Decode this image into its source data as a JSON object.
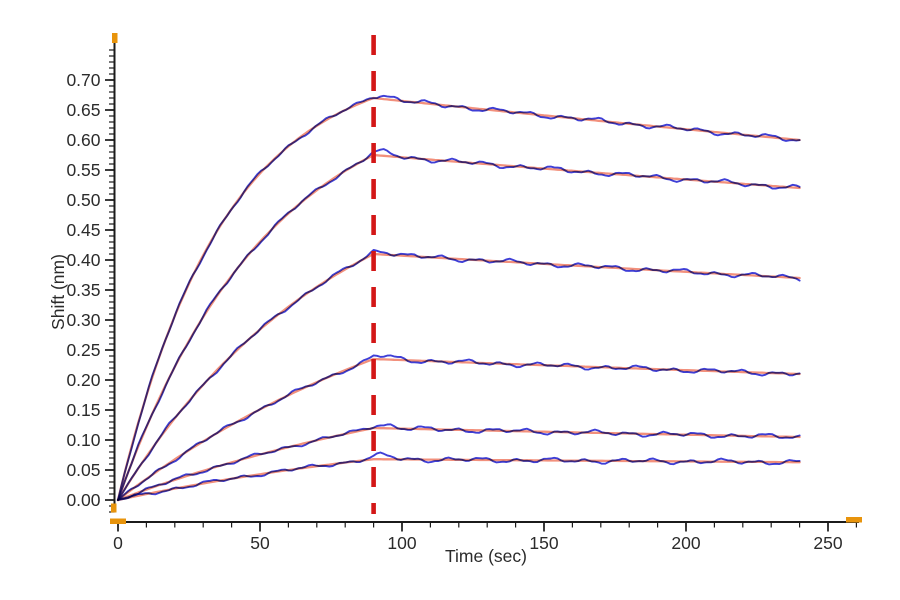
{
  "chart_data": {
    "type": "line",
    "title": "",
    "xlabel": "Time (sec)",
    "ylabel": "Shift (nm)",
    "xlim": [
      0,
      262
    ],
    "ylim": [
      -0.02,
      0.75
    ],
    "x_major_ticks": [
      0,
      50,
      100,
      150,
      200,
      250
    ],
    "x_minor_step": 10,
    "y_major_tick_min": 0.0,
    "y_major_tick_max": 0.7,
    "y_major_tick_step": 0.05,
    "y_minor_step": 0.01,
    "y_tick_decimals": 2,
    "grid": false,
    "legend": "none",
    "phase_boundary_sec": 90,
    "time_range_sec": [
      0,
      240
    ],
    "colors": {
      "raw_trace": "#3e3ed6",
      "fit_trace": "#f2907c",
      "phase_boundary_line": "#d31717",
      "axis": "#1b1b1b",
      "axis_end_cap": "#e8940c",
      "tick_text": "#2b2b2b"
    },
    "noise_amplitude_nm": 0.0042,
    "series": [
      {
        "model": {
          "peak_nm": 0.67,
          "end_nm": 0.6,
          "k_assoc": 0.027
        },
        "points": [
          [
            0,
            0
          ],
          [
            10,
            0.174
          ],
          [
            20,
            0.307
          ],
          [
            30,
            0.408
          ],
          [
            40,
            0.485
          ],
          [
            50,
            0.544
          ],
          [
            60,
            0.589
          ],
          [
            70,
            0.624
          ],
          [
            80,
            0.65
          ],
          [
            90,
            0.67
          ],
          [
            100,
            0.665
          ],
          [
            110,
            0.66
          ],
          [
            120,
            0.655
          ],
          [
            130,
            0.65
          ],
          [
            140,
            0.646
          ],
          [
            150,
            0.641
          ],
          [
            160,
            0.636
          ],
          [
            170,
            0.631
          ],
          [
            180,
            0.627
          ],
          [
            190,
            0.622
          ],
          [
            200,
            0.618
          ],
          [
            210,
            0.613
          ],
          [
            220,
            0.609
          ],
          [
            230,
            0.604
          ],
          [
            240,
            0.6
          ]
        ]
      },
      {
        "model": {
          "peak_nm": 0.575,
          "end_nm": 0.52,
          "k_assoc": 0.019
        },
        "points": [
          [
            0,
            0
          ],
          [
            10,
            0.121
          ],
          [
            20,
            0.222
          ],
          [
            30,
            0.305
          ],
          [
            40,
            0.374
          ],
          [
            50,
            0.431
          ],
          [
            60,
            0.478
          ],
          [
            70,
            0.516
          ],
          [
            80,
            0.549
          ],
          [
            90,
            0.575
          ],
          [
            100,
            0.571
          ],
          [
            110,
            0.567
          ],
          [
            120,
            0.564
          ],
          [
            130,
            0.56
          ],
          [
            140,
            0.556
          ],
          [
            150,
            0.552
          ],
          [
            160,
            0.549
          ],
          [
            170,
            0.545
          ],
          [
            180,
            0.541
          ],
          [
            190,
            0.538
          ],
          [
            200,
            0.534
          ],
          [
            210,
            0.531
          ],
          [
            220,
            0.527
          ],
          [
            230,
            0.524
          ],
          [
            240,
            0.52
          ]
        ]
      },
      {
        "model": {
          "peak_nm": 0.41,
          "end_nm": 0.37,
          "k_assoc": 0.013
        },
        "points": [
          [
            0,
            0
          ],
          [
            10,
            0.072
          ],
          [
            20,
            0.136
          ],
          [
            30,
            0.192
          ],
          [
            40,
            0.241
          ],
          [
            50,
            0.284
          ],
          [
            60,
            0.322
          ],
          [
            70,
            0.355
          ],
          [
            80,
            0.384
          ],
          [
            90,
            0.41
          ],
          [
            100,
            0.407
          ],
          [
            110,
            0.404
          ],
          [
            120,
            0.402
          ],
          [
            130,
            0.399
          ],
          [
            140,
            0.396
          ],
          [
            150,
            0.393
          ],
          [
            160,
            0.391
          ],
          [
            170,
            0.388
          ],
          [
            180,
            0.385
          ],
          [
            190,
            0.383
          ],
          [
            200,
            0.38
          ],
          [
            210,
            0.378
          ],
          [
            220,
            0.375
          ],
          [
            230,
            0.373
          ],
          [
            240,
            0.37
          ]
        ]
      },
      {
        "model": {
          "peak_nm": 0.235,
          "end_nm": 0.21,
          "k_assoc": 0.008
        },
        "points": [
          [
            0,
            0
          ],
          [
            10,
            0.035
          ],
          [
            20,
            0.068
          ],
          [
            30,
            0.098
          ],
          [
            40,
            0.125
          ],
          [
            50,
            0.151
          ],
          [
            60,
            0.175
          ],
          [
            70,
            0.196
          ],
          [
            80,
            0.216
          ],
          [
            90,
            0.235
          ],
          [
            100,
            0.233
          ],
          [
            110,
            0.231
          ],
          [
            120,
            0.23
          ],
          [
            130,
            0.228
          ],
          [
            140,
            0.226
          ],
          [
            150,
            0.225
          ],
          [
            160,
            0.223
          ],
          [
            170,
            0.221
          ],
          [
            180,
            0.22
          ],
          [
            190,
            0.218
          ],
          [
            200,
            0.217
          ],
          [
            210,
            0.215
          ],
          [
            220,
            0.213
          ],
          [
            230,
            0.212
          ],
          [
            240,
            0.21
          ]
        ]
      },
      {
        "model": {
          "peak_nm": 0.12,
          "end_nm": 0.105,
          "k_assoc": 0.007
        },
        "points": [
          [
            0,
            0
          ],
          [
            10,
            0.017
          ],
          [
            20,
            0.034
          ],
          [
            30,
            0.049
          ],
          [
            40,
            0.063
          ],
          [
            50,
            0.076
          ],
          [
            60,
            0.088
          ],
          [
            70,
            0.099
          ],
          [
            80,
            0.11
          ],
          [
            90,
            0.12
          ],
          [
            100,
            0.119
          ],
          [
            110,
            0.118
          ],
          [
            120,
            0.117
          ],
          [
            130,
            0.116
          ],
          [
            140,
            0.115
          ],
          [
            150,
            0.114
          ],
          [
            160,
            0.113
          ],
          [
            170,
            0.112
          ],
          [
            180,
            0.111
          ],
          [
            190,
            0.11
          ],
          [
            200,
            0.109
          ],
          [
            210,
            0.108
          ],
          [
            220,
            0.107
          ],
          [
            230,
            0.106
          ],
          [
            240,
            0.105
          ]
        ]
      },
      {
        "model": {
          "peak_nm": 0.068,
          "end_nm": 0.063,
          "k_assoc": 0.007
        },
        "points": [
          [
            0,
            0
          ],
          [
            10,
            0.01
          ],
          [
            20,
            0.019
          ],
          [
            30,
            0.028
          ],
          [
            40,
            0.036
          ],
          [
            50,
            0.043
          ],
          [
            60,
            0.05
          ],
          [
            70,
            0.056
          ],
          [
            80,
            0.062
          ],
          [
            90,
            0.068
          ],
          [
            100,
            0.068
          ],
          [
            110,
            0.067
          ],
          [
            120,
            0.067
          ],
          [
            130,
            0.067
          ],
          [
            140,
            0.066
          ],
          [
            150,
            0.066
          ],
          [
            160,
            0.066
          ],
          [
            170,
            0.065
          ],
          [
            180,
            0.065
          ],
          [
            190,
            0.065
          ],
          [
            200,
            0.064
          ],
          [
            210,
            0.064
          ],
          [
            220,
            0.064
          ],
          [
            230,
            0.063
          ],
          [
            240,
            0.063
          ]
        ]
      }
    ]
  }
}
